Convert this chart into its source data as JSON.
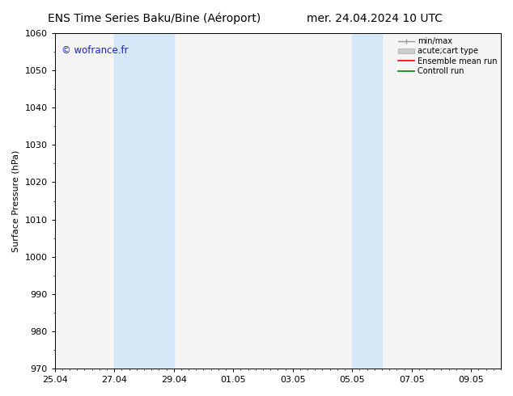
{
  "title_left": "ENS Time Series Baku/Bine (Aéroport)",
  "title_right": "mer. 24.04.2024 10 UTC",
  "ylabel": "Surface Pressure (hPa)",
  "ylim": [
    970,
    1060
  ],
  "yticks": [
    970,
    980,
    990,
    1000,
    1010,
    1020,
    1030,
    1040,
    1050,
    1060
  ],
  "xtick_labels": [
    "25.04",
    "27.04",
    "29.04",
    "01.05",
    "03.05",
    "05.05",
    "07.05",
    "09.05"
  ],
  "xtick_positions": [
    0,
    2,
    4,
    6,
    8,
    10,
    12,
    14
  ],
  "xlim": [
    0,
    15
  ],
  "watermark": "© wofrance.fr",
  "watermark_color": "#1a1aff",
  "background_color": "#ffffff",
  "plot_bg_color": "#f5f5f5",
  "shaded_bands": [
    {
      "xstart": 2,
      "xend": 4,
      "color": "#d4e8f8"
    },
    {
      "xstart": 10,
      "xend": 11,
      "color": "#d4e8f8"
    }
  ],
  "legend_entries": [
    {
      "label": "min/max",
      "color": "#999999",
      "lw": 1.0,
      "type": "minmax"
    },
    {
      "label": "acute;cart type",
      "color": "#cccccc",
      "lw": 5,
      "type": "band"
    },
    {
      "label": "Ensemble mean run",
      "color": "#ff0000",
      "lw": 1.2,
      "type": "line"
    },
    {
      "label": "Controll run",
      "color": "#008000",
      "lw": 1.2,
      "type": "line"
    }
  ],
  "title_fontsize": 10,
  "tick_fontsize": 8,
  "ylabel_fontsize": 8,
  "watermark_fontsize": 8.5,
  "legend_fontsize": 7
}
